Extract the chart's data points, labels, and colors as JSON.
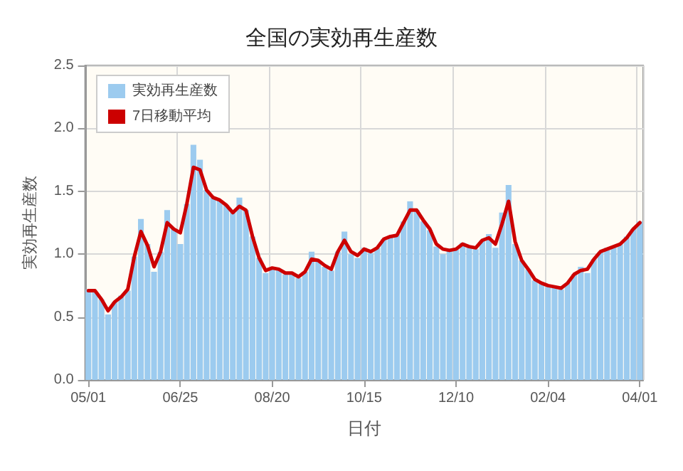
{
  "chart_data": {
    "type": "bar",
    "title": "全国の実効再生産数",
    "xlabel": "日付",
    "ylabel": "実効再生産数",
    "categories": [
      "05/01",
      null,
      null,
      null,
      null,
      null,
      null,
      null,
      null,
      null,
      null,
      null,
      null,
      null,
      "06/25",
      null,
      null,
      null,
      null,
      null,
      null,
      null,
      null,
      null,
      null,
      null,
      null,
      null,
      "08/20",
      null,
      null,
      null,
      null,
      null,
      null,
      null,
      null,
      null,
      null,
      null,
      null,
      null,
      "10/15",
      null,
      null,
      null,
      null,
      null,
      null,
      null,
      null,
      null,
      null,
      null,
      null,
      null,
      "12/10",
      null,
      null,
      null,
      null,
      null,
      null,
      null,
      null,
      null,
      null,
      null,
      null,
      null,
      "02/04",
      null,
      null,
      null,
      null,
      null,
      null,
      null,
      null,
      null,
      null,
      null,
      null,
      null,
      "04/01"
    ],
    "series": [
      {
        "name": "実効再生産数",
        "color": "#9ccbef",
        "values": [
          0.72,
          0.7,
          0.64,
          0.52,
          0.62,
          0.67,
          0.71,
          0.98,
          1.28,
          1.08,
          0.86,
          1.02,
          1.35,
          1.2,
          1.08,
          1.4,
          1.87,
          1.75,
          1.51,
          1.45,
          1.43,
          1.39,
          1.33,
          1.45,
          1.35,
          1.14,
          0.97,
          0.85,
          0.89,
          0.88,
          0.84,
          0.85,
          0.81,
          0.86,
          1.02,
          0.95,
          0.9,
          0.87,
          1.02,
          1.18,
          1.0,
          0.97,
          1.05,
          1.01,
          1.05,
          1.12,
          1.14,
          1.16,
          1.26,
          1.42,
          1.35,
          1.26,
          1.19,
          1.06,
          1.0,
          1.03,
          1.04,
          1.09,
          1.06,
          1.04,
          1.11,
          1.16,
          1.05,
          1.33,
          1.55,
          1.08,
          0.95,
          0.88,
          0.79,
          0.77,
          0.74,
          0.73,
          0.72,
          0.77,
          0.84,
          0.9,
          0.85,
          0.96,
          1.02,
          1.05,
          1.06,
          1.08,
          1.14,
          1.2,
          1.26
        ]
      },
      {
        "name": "7日移動平均",
        "type": "line",
        "color": "#cc0000",
        "values": [
          0.71,
          0.71,
          0.64,
          0.55,
          0.62,
          0.66,
          0.72,
          0.98,
          1.18,
          1.07,
          0.9,
          1.02,
          1.25,
          1.2,
          1.17,
          1.4,
          1.69,
          1.67,
          1.51,
          1.45,
          1.43,
          1.39,
          1.33,
          1.38,
          1.35,
          1.14,
          0.97,
          0.87,
          0.89,
          0.88,
          0.85,
          0.85,
          0.82,
          0.86,
          0.96,
          0.95,
          0.91,
          0.88,
          1.02,
          1.11,
          1.02,
          0.99,
          1.04,
          1.02,
          1.05,
          1.12,
          1.14,
          1.15,
          1.25,
          1.35,
          1.35,
          1.27,
          1.2,
          1.08,
          1.04,
          1.03,
          1.04,
          1.08,
          1.06,
          1.05,
          1.11,
          1.13,
          1.08,
          1.24,
          1.42,
          1.1,
          0.95,
          0.88,
          0.8,
          0.77,
          0.75,
          0.74,
          0.73,
          0.77,
          0.84,
          0.87,
          0.88,
          0.96,
          1.02,
          1.04,
          1.06,
          1.08,
          1.13,
          1.2,
          1.25
        ]
      }
    ],
    "ylim": [
      0,
      2.5
    ],
    "yticks": [
      {
        "value": 0,
        "label": "0.0"
      },
      {
        "value": 0.5,
        "label": "0.5"
      },
      {
        "value": 1,
        "label": "1.0"
      },
      {
        "value": 1.5,
        "label": "1.5"
      },
      {
        "value": 2,
        "label": "2.0"
      },
      {
        "value": 2.5,
        "label": "2.5"
      }
    ],
    "grid": true,
    "legend": "top left",
    "marker": "none",
    "line_style": "solid"
  }
}
